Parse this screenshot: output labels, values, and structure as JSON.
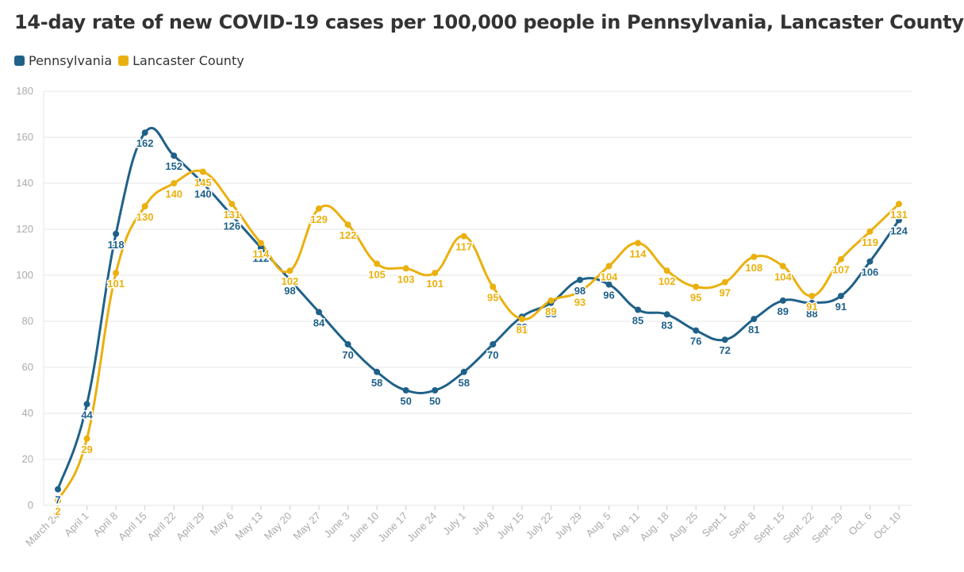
{
  "colors": {
    "pennsylvania": "#1f6189",
    "lancaster": "#ebb00e",
    "grid": "#e6e6e6",
    "axis_text": "#aaaaaa",
    "title": "#333333"
  },
  "chart_data": {
    "type": "line",
    "title": "14-day rate of new COVID-19 cases per 100,000 people in Pennsylvania, Lancaster County",
    "xlabel": "",
    "ylabel": "",
    "ylim": [
      0,
      180
    ],
    "yticks": [
      0,
      20,
      40,
      60,
      80,
      100,
      120,
      140,
      160,
      180
    ],
    "grid": true,
    "legend": "top-left",
    "categories": [
      "March 24",
      "April 1",
      "April 8",
      "April 15",
      "April 22",
      "April 29",
      "May 6",
      "May 13",
      "May 20",
      "May 27",
      "June 3",
      "June 10",
      "June 17",
      "June 24",
      "July 1",
      "July 8",
      "July 15",
      "July 22",
      "July 29",
      "Aug. 5",
      "Aug. 11",
      "Aug. 18",
      "Aug. 25",
      "Sept.1",
      "Sept. 8",
      "Sept. 15",
      "Sept. 22",
      "Sept. 29",
      "Oct. 6",
      "Oct. 10"
    ],
    "series": [
      {
        "name": "Pennsylvania",
        "color": "#1f6189",
        "values": [
          7,
          44,
          118,
          162,
          152,
          140,
          126,
          112,
          98,
          84,
          70,
          58,
          50,
          50,
          58,
          70,
          82,
          88,
          98,
          96,
          85,
          83,
          76,
          72,
          81,
          89,
          88,
          91,
          106,
          124
        ]
      },
      {
        "name": "Lancaster County",
        "color": "#ebb00e",
        "values": [
          2,
          29,
          101,
          130,
          140,
          145,
          131,
          114,
          102,
          129,
          122,
          105,
          103,
          101,
          117,
          95,
          81,
          89,
          93,
          104,
          114,
          102,
          95,
          97,
          108,
          104,
          91,
          107,
          119,
          131
        ]
      }
    ]
  }
}
